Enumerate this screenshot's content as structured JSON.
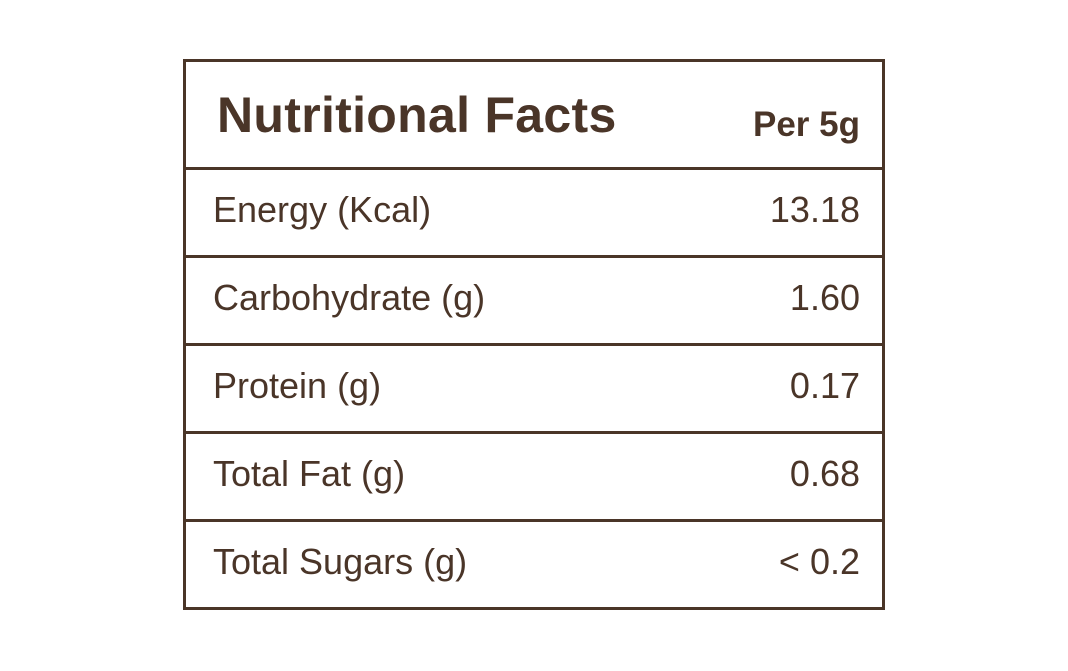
{
  "colors": {
    "text": "#4a3528",
    "border": "#4a3528",
    "background": "#ffffff"
  },
  "header": {
    "title": "Nutritional Facts",
    "serving": "Per 5g"
  },
  "rows": [
    {
      "label": "Energy (Kcal)",
      "value": "13.18"
    },
    {
      "label": "Carbohydrate (g)",
      "value": "1.60"
    },
    {
      "label": "Protein (g)",
      "value": "0.17"
    },
    {
      "label": "Total Fat (g)",
      "value": "0.68"
    },
    {
      "label": "Total Sugars (g)",
      "value": "< 0.2"
    }
  ]
}
